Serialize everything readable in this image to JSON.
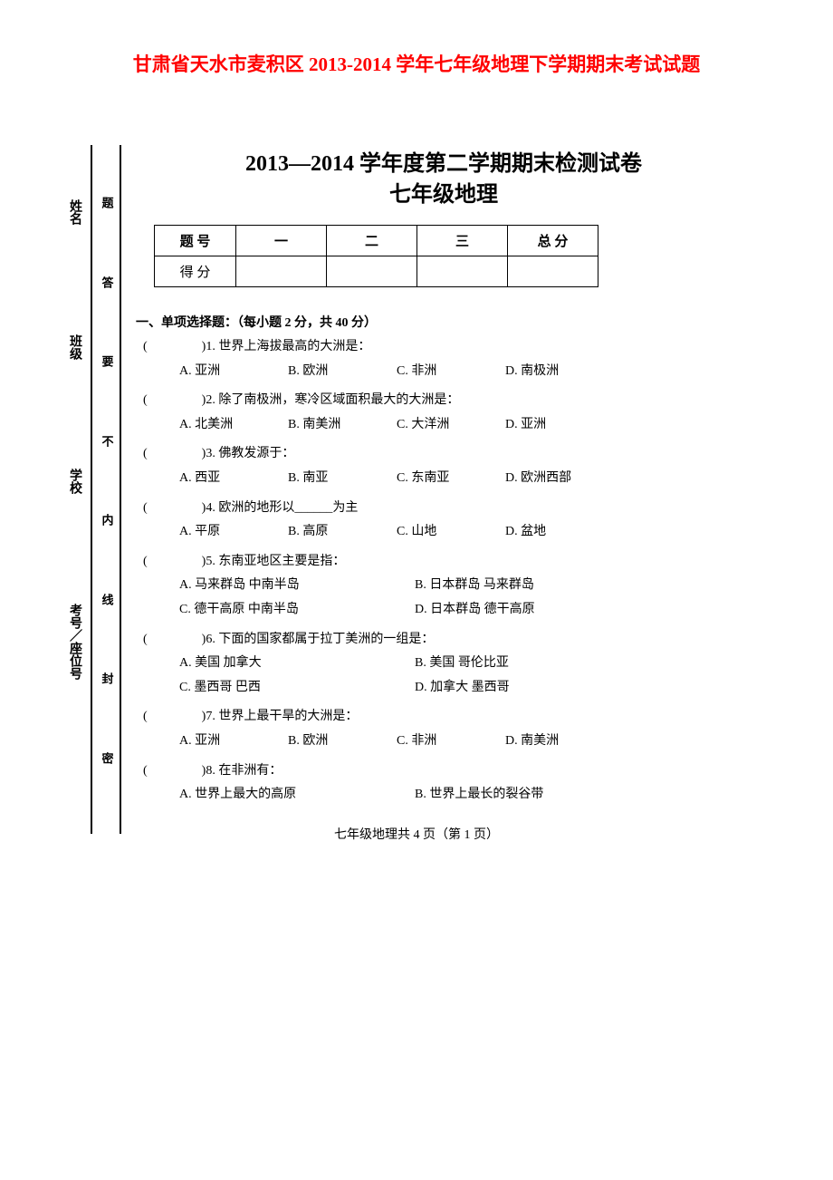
{
  "header": {
    "title": "甘肃省天水市麦积区 2013-2014 学年七年级地理下学期期末考试试题"
  },
  "exam": {
    "title_line1": "2013—2014 学年度第二学期期末检测试卷",
    "title_line2": "七年级地理"
  },
  "scoreTable": {
    "row1_label": "题 号",
    "row2_label": "得 分",
    "cols": [
      "一",
      "二",
      "三",
      "总  分"
    ]
  },
  "bindingOuter": [
    "姓名",
    "班级",
    "学校",
    "考号／座位号"
  ],
  "bindingInner": [
    "题",
    "答",
    "要",
    "不",
    "内",
    "线",
    "封",
    "密"
  ],
  "section1": {
    "title": "一、单项选择题：（每小题 2 分，共 40 分）"
  },
  "questions": [
    {
      "num": "1",
      "stem": "世界上海拔最高的大洲是：",
      "opts": [
        "A. 亚洲",
        "B. 欧洲",
        "C. 非洲",
        "D. 南极洲"
      ],
      "layout": "opt-4"
    },
    {
      "num": "2",
      "stem": "除了南极洲，寒冷区域面积最大的大洲是：",
      "opts": [
        "A. 北美洲",
        "B. 南美洲",
        "C. 大洋洲",
        "D. 亚洲"
      ],
      "layout": "opt-4"
    },
    {
      "num": "3",
      "stem": "佛教发源于：",
      "opts": [
        "A. 西亚",
        "B. 南亚",
        "C. 东南亚",
        "D. 欧洲西部"
      ],
      "layout": "opt-4"
    },
    {
      "num": "4",
      "stem": "欧洲的地形以______为主",
      "opts": [
        "A. 平原",
        "B. 高原",
        "C. 山地",
        "D. 盆地"
      ],
      "layout": "opt-4"
    },
    {
      "num": "5",
      "stem": "东南亚地区主要是指：",
      "opts": [
        "A. 马来群岛  中南半岛",
        "B. 日本群岛  马来群岛",
        "C. 德干高原  中南半岛",
        "D. 日本群岛  德干高原"
      ],
      "layout": "opt-2"
    },
    {
      "num": "6",
      "stem": "下面的国家都属于拉丁美洲的一组是：",
      "opts": [
        "A.  美国   加拿大",
        "B.  美国   哥伦比亚",
        "C.  墨西哥   巴西",
        "D.  加拿大   墨西哥"
      ],
      "layout": "opt-2"
    },
    {
      "num": "7",
      "stem": "世界上最干旱的大洲是：",
      "opts": [
        "A. 亚洲",
        "B. 欧洲",
        "C. 非洲",
        "D. 南美洲"
      ],
      "layout": "opt-4"
    },
    {
      "num": "8",
      "stem": "在非洲有：",
      "opts": [
        "A. 世界上最大的高原",
        "B. 世界上最长的裂谷带"
      ],
      "layout": "opt-2"
    }
  ],
  "footer": "七年级地理共 4 页（第 1 页）",
  "colors": {
    "title": "#ff0000",
    "text": "#000000",
    "bg": "#ffffff"
  }
}
